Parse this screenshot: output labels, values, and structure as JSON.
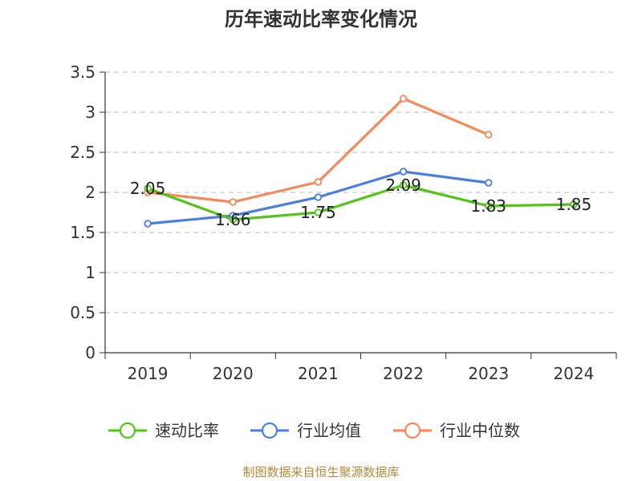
{
  "chart_data": {
    "type": "line",
    "title": "历年速动比率变化情况",
    "xlabel": "",
    "ylabel": "",
    "categories": [
      "2019",
      "2020",
      "2021",
      "2022",
      "2023",
      "2024"
    ],
    "ylim": [
      0,
      3.5
    ],
    "yticks": [
      "0",
      "0.5",
      "1",
      "1.5",
      "2",
      "2.5",
      "3",
      "3.5"
    ],
    "grid": "horizontal dashed",
    "legend": "bottom",
    "series": [
      {
        "name": "速动比率",
        "color": "#52c41a",
        "values": [
          2.05,
          1.66,
          1.75,
          2.09,
          1.83,
          1.85
        ],
        "labels": [
          "2.05",
          "1.66",
          "1.75",
          "2.09",
          "1.83",
          "1.85"
        ],
        "show_labels": true
      },
      {
        "name": "行业均值",
        "color": "#4a7fdc",
        "values": [
          1.61,
          1.71,
          1.94,
          2.26,
          2.12,
          null
        ],
        "show_labels": false
      },
      {
        "name": "行业中位数",
        "color": "#f5895a",
        "values": [
          2.0,
          1.88,
          2.13,
          3.17,
          2.72,
          null
        ],
        "show_labels": false
      }
    ]
  },
  "footer": {
    "source": "制图数据来自恒生聚源数据库"
  }
}
